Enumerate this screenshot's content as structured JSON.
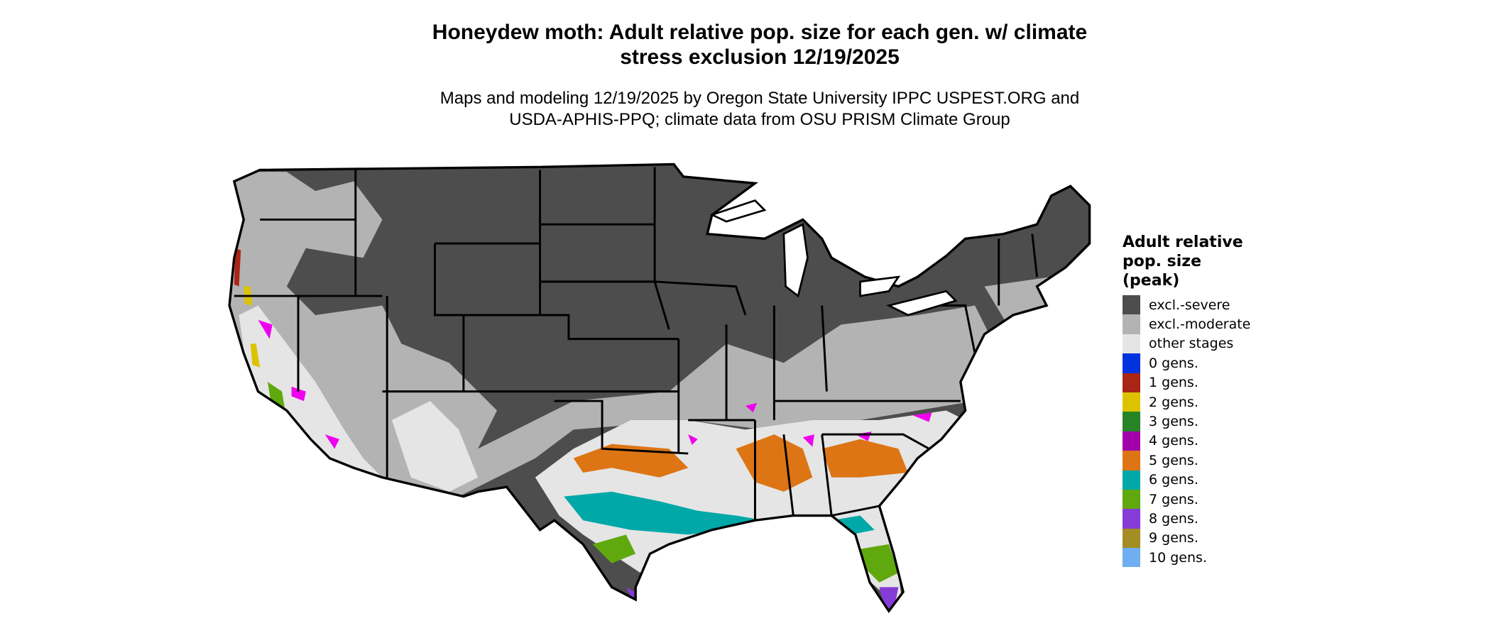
{
  "title": {
    "line1": "Honeydew moth: Adult relative pop. size for each gen. w/ climate",
    "line2": "stress exclusion 12/19/2025"
  },
  "subtitle": {
    "line1": "Maps and modeling 12/19/2025 by Oregon State University IPPC USPEST.ORG and",
    "line2": "USDA-APHIS-PPQ; climate data from OSU PRISM Climate Group"
  },
  "legend": {
    "title": "Adult relative pop. size (peak)",
    "items": [
      {
        "label": "excl.-severe",
        "color": "#4d4d4d"
      },
      {
        "label": "excl.-moderate",
        "color": "#b3b3b3"
      },
      {
        "label": "other stages",
        "color": "#e5e5e5"
      },
      {
        "label": "0 gens.",
        "color": "#0033dd"
      },
      {
        "label": "1 gens.",
        "color": "#aa2516"
      },
      {
        "label": "2 gens.",
        "color": "#dcc300"
      },
      {
        "label": "3 gens.",
        "color": "#268426"
      },
      {
        "label": "4 gens.",
        "color": "#a200a8"
      },
      {
        "label": "5 gens.",
        "color": "#dd7514"
      },
      {
        "label": "6 gens.",
        "color": "#00a8a8"
      },
      {
        "label": "7 gens.",
        "color": "#5fa80e"
      },
      {
        "label": "8 gens.",
        "color": "#853bd6"
      },
      {
        "label": "9 gens.",
        "color": "#a38d24"
      },
      {
        "label": "10 gens.",
        "color": "#6faef0"
      }
    ]
  }
}
